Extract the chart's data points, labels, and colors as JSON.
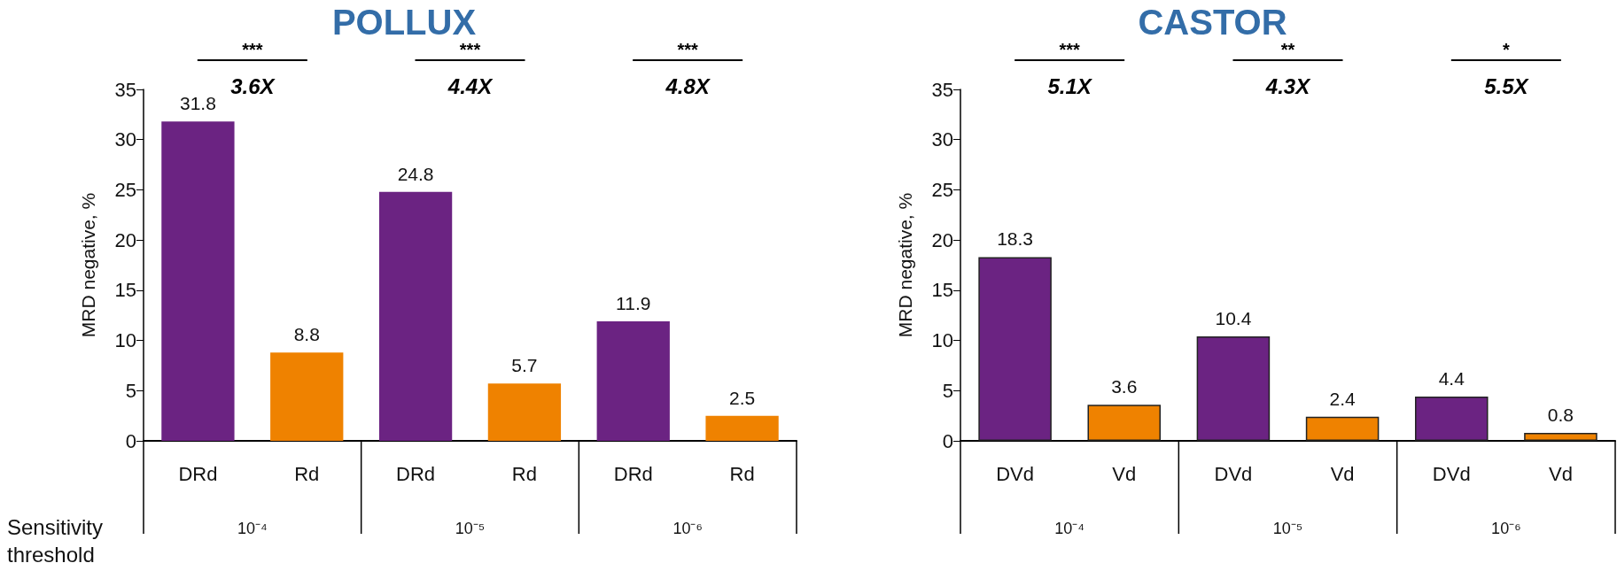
{
  "chart_data": [
    {
      "type": "bar",
      "title": "POLLUX",
      "ylabel": "MRD negative, %",
      "categories": [
        "DRd",
        "Rd",
        "DRd",
        "Rd",
        "DRd",
        "Rd"
      ],
      "values": [
        31.8,
        8.8,
        24.8,
        5.7,
        11.9,
        2.5
      ],
      "colors": [
        "#6b2382",
        "#ef8200",
        "#6b2382",
        "#ef8200",
        "#6b2382",
        "#ef8200"
      ],
      "ylim": [
        0,
        35
      ],
      "yticks": [
        0,
        5,
        10,
        15,
        20,
        25,
        30,
        35
      ],
      "grid": false,
      "data_labels": true,
      "annotations": [
        "***",
        "3.6X",
        "***",
        "4.4X",
        "***",
        "4.8X",
        "10⁻⁴",
        "10⁻⁵",
        "10⁻⁶",
        "Sensitivity threshold"
      ]
    },
    {
      "type": "bar",
      "title": "CASTOR",
      "ylabel": "MRD negative, %",
      "categories": [
        "DVd",
        "Vd",
        "DVd",
        "Vd",
        "DVd",
        "Vd"
      ],
      "values": [
        18.3,
        3.6,
        10.4,
        2.4,
        4.4,
        0.8
      ],
      "colors": [
        "#6b2382",
        "#ef8200",
        "#6b2382",
        "#ef8200",
        "#6b2382",
        "#ef8200"
      ],
      "ylim": [
        0,
        35
      ],
      "yticks": [
        0,
        5,
        10,
        15,
        20,
        25,
        30,
        35
      ],
      "grid": false,
      "data_labels": true,
      "annotations": [
        "***",
        "5.1X",
        "**",
        "4.3X",
        "*",
        "5.5X",
        "10⁻⁴",
        "10⁻⁵",
        "10⁻⁶"
      ]
    }
  ]
}
